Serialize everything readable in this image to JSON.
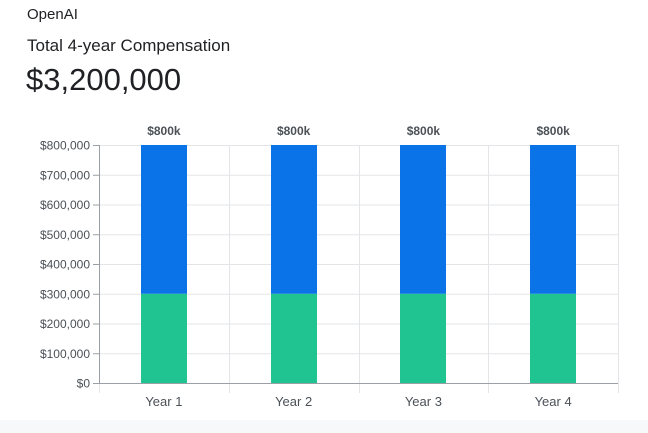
{
  "header": {
    "company": "OpenAI",
    "subtitle": "Total 4-year Compensation",
    "total": "$3,200,000"
  },
  "colors": {
    "stock": "#0a73e8",
    "salary": "#20c491",
    "grid": "#e3e5e8",
    "axis": "#9aa0a6",
    "tick_text": "#4b5157",
    "label_text": "#4b5157"
  },
  "chart_data": {
    "type": "bar",
    "stacked": true,
    "categories": [
      "Year 1",
      "Year 2",
      "Year 3",
      "Year 4"
    ],
    "series": [
      {
        "values": [
          300000,
          300000,
          300000,
          300000
        ],
        "color": "#20c491"
      },
      {
        "values": [
          500000,
          500000,
          500000,
          500000
        ],
        "color": "#0a73e8"
      }
    ],
    "total_labels": [
      "$800k",
      "$800k",
      "$800k",
      "$800k"
    ],
    "y_ticks": [
      0,
      100000,
      200000,
      300000,
      400000,
      500000,
      600000,
      700000,
      800000
    ],
    "y_tick_labels": [
      "$0",
      "$100,000",
      "$200,000",
      "$300,000",
      "$400,000",
      "$500,000",
      "$600,000",
      "$700,000",
      "$800,000"
    ],
    "ylim": [
      0,
      800000
    ],
    "grid": true,
    "legend": "none",
    "title": "",
    "xlabel": "",
    "ylabel": ""
  }
}
